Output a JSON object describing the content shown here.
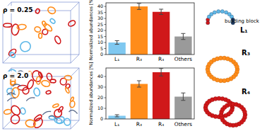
{
  "chart_data": [
    {
      "type": "bar",
      "title": "ρ = 0.25",
      "y_label": "Normalized abundances [%]",
      "categories": [
        "L₁",
        "R₃",
        "R₄",
        "Others"
      ],
      "values": [
        10,
        40,
        35.5,
        15
      ],
      "error": [
        1.5,
        2.5,
        2.2,
        2.5
      ],
      "colors": [
        "#7fc8f0",
        "#ff8c1a",
        "#d0181a",
        "#9a9a9a"
      ],
      "ylim": [
        0,
        43
      ],
      "yticks": [
        0,
        5,
        10,
        15,
        20,
        25,
        30,
        35,
        40
      ],
      "grid": false
    },
    {
      "type": "bar",
      "title": "ρ = 2.0",
      "y_label": "Normalized abundances [%]",
      "categories": [
        "L₁",
        "R₃",
        "R₄",
        "Others"
      ],
      "values": [
        3,
        33,
        44,
        21
      ],
      "error": [
        1,
        3,
        3.5,
        3.5
      ],
      "colors": [
        "#7fc8f0",
        "#ff8c1a",
        "#d0181a",
        "#9a9a9a"
      ],
      "ylim": [
        0,
        48
      ],
      "yticks": [
        0,
        10,
        20,
        30,
        40
      ],
      "grid": false
    }
  ],
  "illustration": {
    "building_block": "building block",
    "labels": [
      "L₁",
      "R₃",
      "R₄"
    ]
  }
}
